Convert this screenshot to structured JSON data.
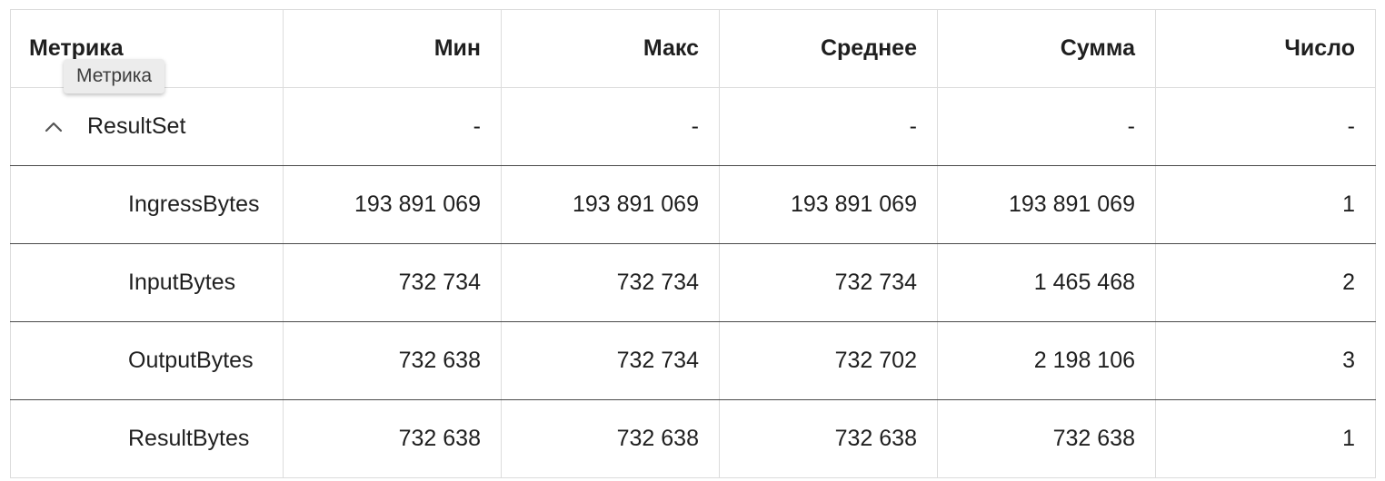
{
  "tooltip": {
    "text": "Метрика"
  },
  "table": {
    "headers": [
      "Метрика",
      "Мин",
      "Макс",
      "Среднее",
      "Сумма",
      "Число"
    ],
    "group": {
      "name": "ResultSet",
      "expanded": true,
      "icon": "chevron-up-icon",
      "values": [
        "-",
        "-",
        "-",
        "-",
        "-"
      ]
    },
    "rows": [
      {
        "name": "IngressBytes",
        "values": [
          "193 891 069",
          "193 891 069",
          "193 891 069",
          "193 891 069",
          "1"
        ]
      },
      {
        "name": "InputBytes",
        "values": [
          "732 734",
          "732 734",
          "732 734",
          "1 465 468",
          "2"
        ]
      },
      {
        "name": "OutputBytes",
        "values": [
          "732 638",
          "732 734",
          "732 702",
          "2 198 106",
          "3"
        ]
      },
      {
        "name": "ResultBytes",
        "values": [
          "732 638",
          "732 638",
          "732 638",
          "732 638",
          "1"
        ]
      }
    ]
  }
}
